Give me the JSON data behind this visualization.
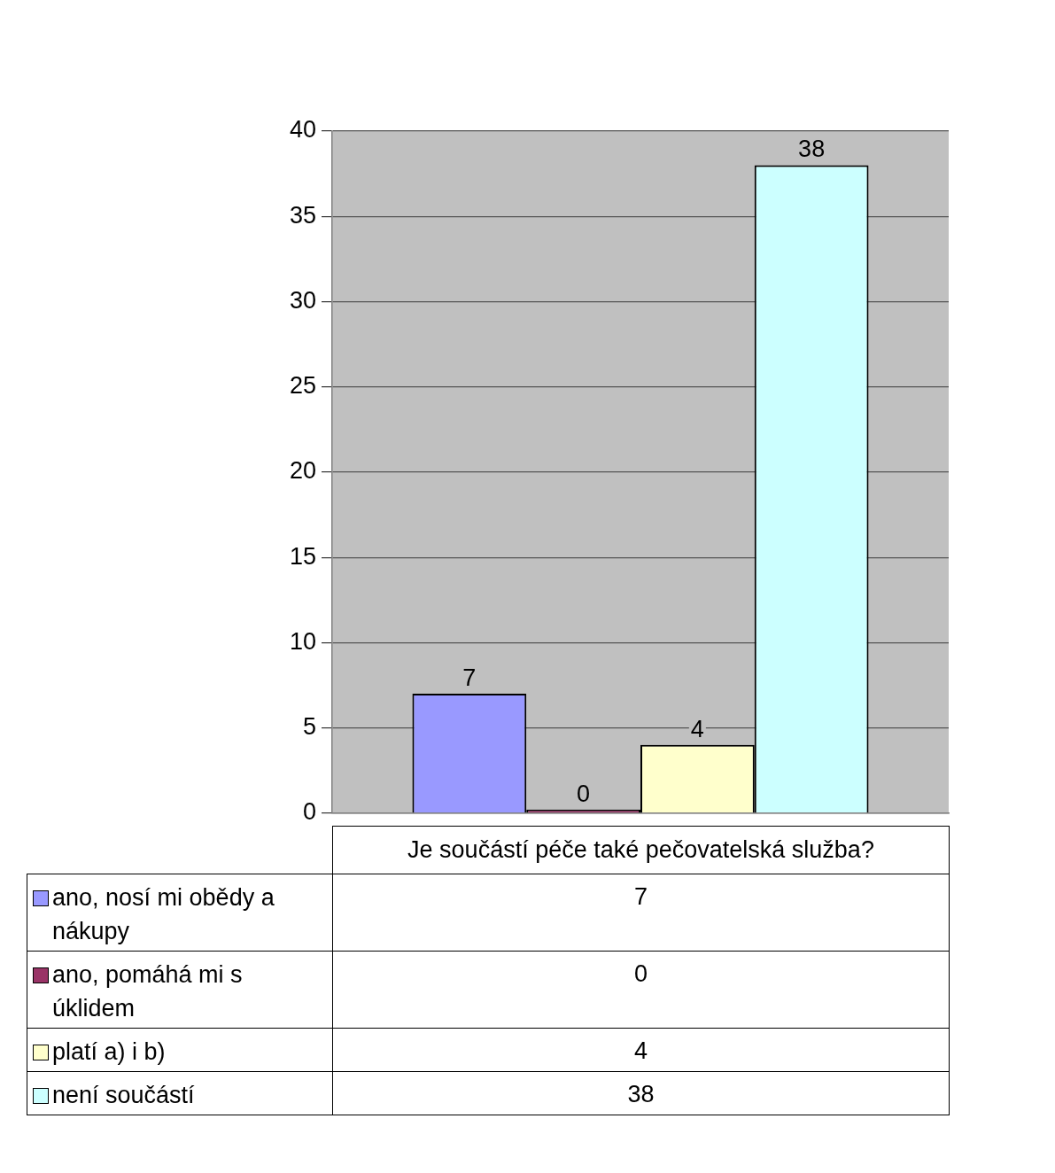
{
  "chart_data": {
    "type": "bar",
    "categories": [
      "Je součástí péče také pečovatelská služba?"
    ],
    "series": [
      {
        "name": "ano, nosí mi obědy a nákupy",
        "color": "#9999ff",
        "values": [
          7
        ]
      },
      {
        "name": "ano, pomáhá mi s úklidem",
        "color": "#993366",
        "values": [
          0
        ]
      },
      {
        "name": "platí a) i b)",
        "color": "#ffffcc",
        "values": [
          4
        ]
      },
      {
        "name": "není součástí",
        "color": "#ccffff",
        "values": [
          38
        ]
      }
    ],
    "annotations": [
      "7",
      "0",
      "4",
      "38"
    ],
    "ylim": [
      0,
      40
    ],
    "yticks": [
      0,
      5,
      10,
      15,
      20,
      25,
      30,
      35,
      40
    ],
    "grid": "y",
    "legend": "bottom",
    "data_labels": true
  }
}
